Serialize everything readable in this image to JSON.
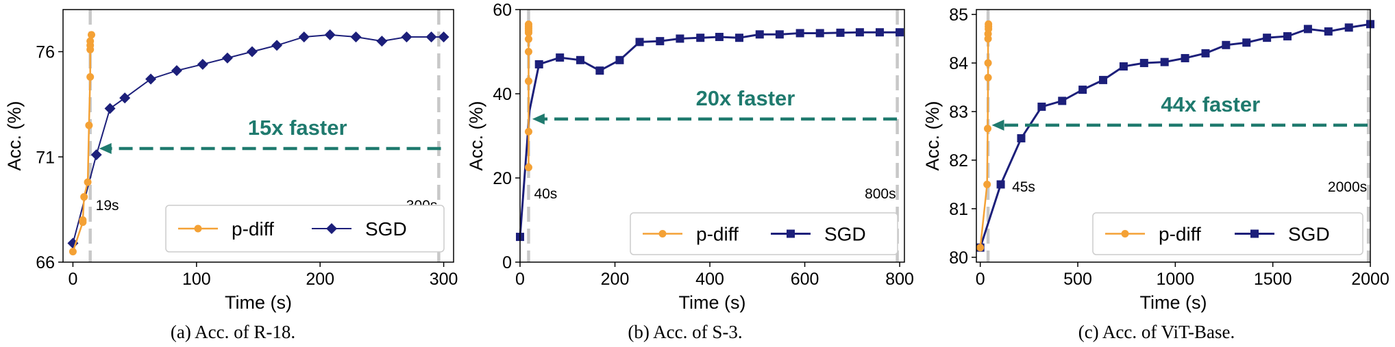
{
  "colors": {
    "pdiff": "#f4a135",
    "sgd": "#1c1f7a",
    "arrow": "#1f7a6e",
    "vline": "#c8c8c8"
  },
  "chart_data": [
    {
      "type": "line",
      "caption": "(a) Acc. of R-18.",
      "xlabel": "Time (s)",
      "ylabel": "Acc. (%)",
      "xlim": [
        -8,
        308
      ],
      "ylim": [
        66,
        78
      ],
      "xticks": [
        0,
        100,
        200,
        300
      ],
      "yticks": [
        66,
        71,
        76
      ],
      "legend_position": "lower-right",
      "series": [
        {
          "name": "p-diff",
          "marker": "circle",
          "x": [
            0,
            8,
            8,
            9,
            12,
            13,
            14,
            14,
            14,
            14,
            15
          ],
          "y": [
            66.5,
            67.9,
            68.0,
            69.1,
            69.8,
            72.5,
            74.8,
            76.1,
            76.3,
            76.5,
            76.8
          ]
        },
        {
          "name": "SGD",
          "marker": "diamond",
          "x": [
            0,
            19,
            30,
            42,
            63,
            84,
            105,
            125,
            145,
            165,
            187,
            208,
            229,
            250,
            270,
            290,
            300
          ],
          "y": [
            66.9,
            71.1,
            73.3,
            73.8,
            74.7,
            75.1,
            75.4,
            75.7,
            76.0,
            76.3,
            76.7,
            76.8,
            76.7,
            76.5,
            76.7,
            76.7,
            76.7
          ]
        }
      ],
      "speedup": {
        "label": "15x faster",
        "y": 71.4,
        "from_x": 300,
        "to_x": 19
      },
      "markers": [
        {
          "x": 14,
          "label": "19s"
        },
        {
          "x": 296,
          "label": "300s"
        }
      ]
    },
    {
      "type": "line",
      "caption": "(b) Acc. of S-3.",
      "xlabel": "Time (s)",
      "ylabel": "Acc. (%)",
      "xlim": [
        0,
        810
      ],
      "ylim": [
        0,
        60
      ],
      "xticks": [
        0,
        200,
        400,
        600,
        800
      ],
      "yticks": [
        0,
        20,
        40,
        60
      ],
      "legend_position": "lower-right",
      "series": [
        {
          "name": "p-diff",
          "marker": "circle",
          "x": [
            18,
            18,
            18,
            18,
            18,
            18,
            18,
            18,
            18,
            18
          ],
          "y": [
            22.5,
            31,
            43,
            50,
            53,
            54.5,
            55,
            55.5,
            56,
            56.5
          ]
        },
        {
          "name": "SGD",
          "marker": "square",
          "x": [
            0,
            20,
            40,
            84,
            127,
            168,
            210,
            252,
            295,
            337,
            380,
            420,
            462,
            505,
            547,
            590,
            632,
            675,
            716,
            758,
            800
          ],
          "y": [
            6,
            36,
            47,
            48.6,
            48,
            45.5,
            48,
            52.3,
            52.5,
            53.1,
            53.3,
            53.5,
            53.3,
            54.1,
            54.1,
            54.4,
            54.4,
            54.5,
            54.6,
            54.6,
            54.6
          ]
        }
      ],
      "speedup": {
        "label": "20x faster",
        "y": 34,
        "from_x": 800,
        "to_x": 20
      },
      "markers": [
        {
          "x": 18,
          "label": "40s"
        },
        {
          "x": 795,
          "label": "800s"
        }
      ]
    },
    {
      "type": "line",
      "caption": "(c) Acc. of ViT-Base.",
      "xlabel": "Time (s)",
      "ylabel": "Acc. (%)",
      "xlim": [
        -20,
        2000
      ],
      "ylim": [
        79.9,
        85.1
      ],
      "xticks": [
        0,
        500,
        1000,
        1500,
        2000
      ],
      "yticks": [
        80,
        81,
        82,
        83,
        84,
        85
      ],
      "legend_position": "lower-right",
      "series": [
        {
          "name": "p-diff",
          "marker": "circle",
          "x": [
            0,
            35,
            38,
            40,
            40,
            40,
            40,
            42,
            42,
            42
          ],
          "y": [
            80.2,
            81.5,
            82.65,
            83.7,
            84.0,
            84.5,
            84.6,
            84.7,
            84.75,
            84.8
          ]
        },
        {
          "name": "SGD",
          "marker": "square",
          "x": [
            0,
            105,
            210,
            315,
            420,
            525,
            630,
            735,
            840,
            945,
            1050,
            1155,
            1260,
            1365,
            1470,
            1575,
            1680,
            1785,
            1890,
            2000
          ],
          "y": [
            80.2,
            81.5,
            82.45,
            83.1,
            83.22,
            83.45,
            83.65,
            83.93,
            84.0,
            84.02,
            84.1,
            84.2,
            84.37,
            84.42,
            84.52,
            84.55,
            84.7,
            84.65,
            84.73,
            84.8
          ]
        }
      ],
      "speedup": {
        "label": "44x faster",
        "y": 82.72,
        "from_x": 2000,
        "to_x": 45
      },
      "markers": [
        {
          "x": 40,
          "label": "45s"
        },
        {
          "x": 1990,
          "label": "2000s"
        }
      ]
    }
  ]
}
